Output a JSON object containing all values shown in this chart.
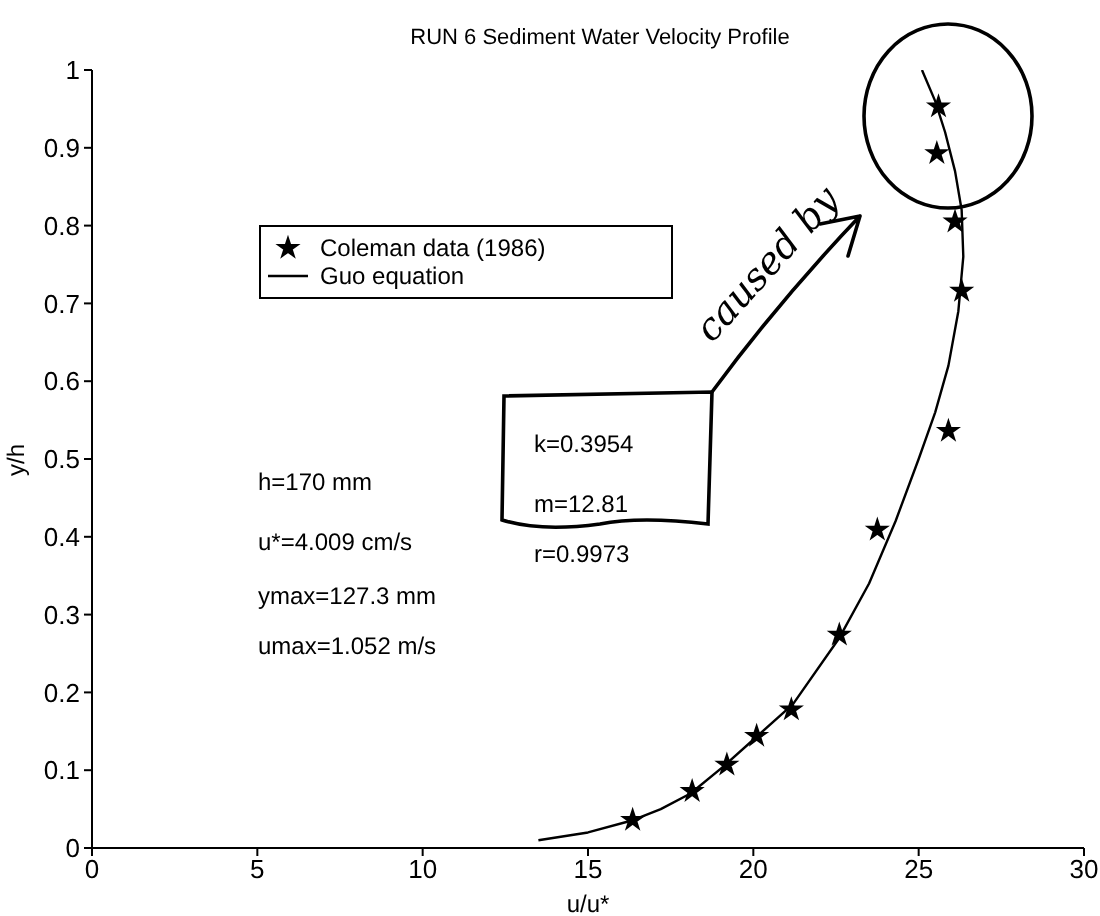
{
  "chart_data": {
    "type": "scatter",
    "title": "RUN 6  Sediment Water Velocity Profile",
    "xlabel": "u/u*",
    "ylabel": "y/h",
    "xlim": [
      0,
      30
    ],
    "xticks": [
      0,
      5,
      10,
      15,
      20,
      25,
      30
    ],
    "ylim": [
      0,
      1
    ],
    "yticks": [
      0,
      0.1,
      0.2,
      0.3,
      0.4,
      0.5,
      0.6,
      0.7,
      0.8,
      0.9,
      1
    ],
    "grid": false,
    "legend": "top left",
    "series": [
      {
        "name": "Coleman data (1986)",
        "type": "scatter",
        "marker": "star",
        "color": "#000000",
        "x": [
          25.6,
          25.55,
          26.1,
          26.3,
          25.9,
          23.75,
          22.6,
          21.15,
          20.1,
          19.2,
          18.15,
          16.35
        ],
        "values": [
          0.953,
          0.893,
          0.805,
          0.716,
          0.536,
          0.409,
          0.274,
          0.178,
          0.144,
          0.107,
          0.073,
          0.036
        ]
      },
      {
        "name": "Guo equation",
        "type": "line",
        "marker": "none",
        "color": "#000000",
        "x": [
          13.5,
          15,
          16.3,
          17.2,
          18.1,
          19.1,
          20.1,
          21.2,
          22.6,
          23.5,
          24.3,
          25,
          25.5,
          25.9,
          26.2,
          26.35,
          26.3,
          26.1,
          25.8,
          25.5,
          25.1
        ],
        "values": [
          0.01,
          0.02,
          0.035,
          0.05,
          0.07,
          0.105,
          0.143,
          0.185,
          0.27,
          0.34,
          0.42,
          0.5,
          0.56,
          0.62,
          0.69,
          0.76,
          0.82,
          0.87,
          0.92,
          0.96,
          1.0
        ]
      }
    ],
    "annotations": [
      "h=170 mm",
      "u*=4.009 cm/s",
      "ymax=127.3 mm",
      "umax=1.052 m/s",
      "k=0.3954",
      "m=12.81",
      "r=0.9973",
      "caused by"
    ]
  }
}
